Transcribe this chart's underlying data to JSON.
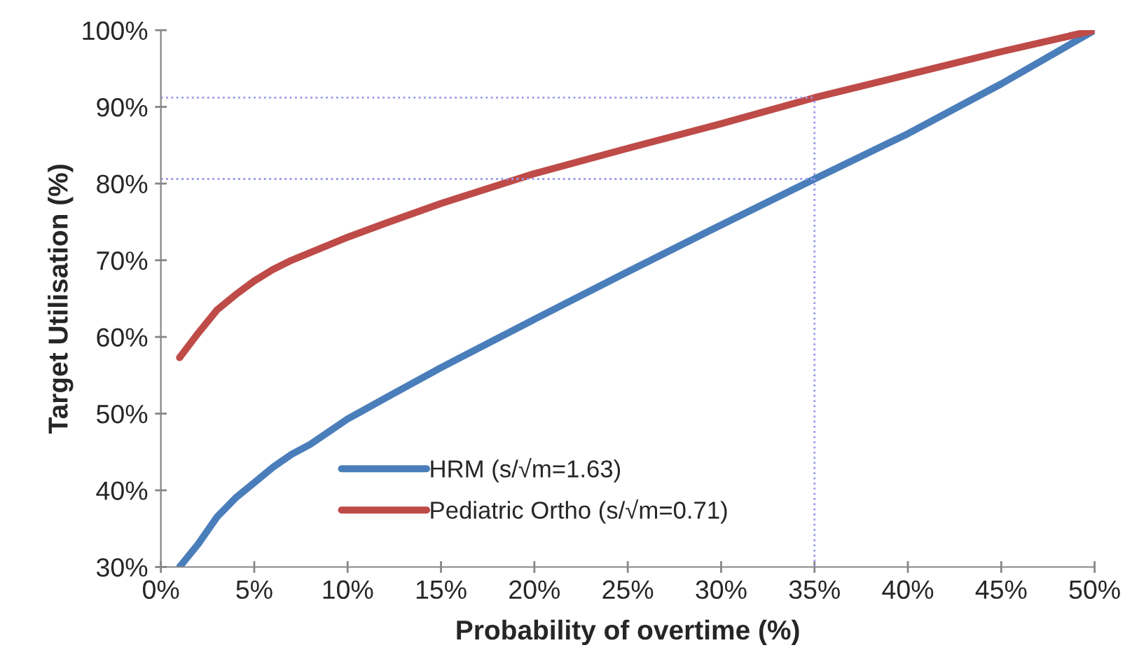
{
  "chart_data": {
    "type": "line",
    "xlabel": "Probability of overtime (%)",
    "ylabel": "Target Utilisation (%)",
    "xlim": [
      0,
      50
    ],
    "ylim": [
      30,
      100
    ],
    "xticks": [
      {
        "value": 0,
        "label": "0%"
      },
      {
        "value": 5,
        "label": "5%"
      },
      {
        "value": 10,
        "label": "10%"
      },
      {
        "value": 15,
        "label": "15%"
      },
      {
        "value": 20,
        "label": "20%"
      },
      {
        "value": 25,
        "label": "25%"
      },
      {
        "value": 30,
        "label": "30%"
      },
      {
        "value": 35,
        "label": "35%"
      },
      {
        "value": 40,
        "label": "40%"
      },
      {
        "value": 45,
        "label": "45%"
      },
      {
        "value": 50,
        "label": "50%"
      }
    ],
    "yticks": [
      {
        "value": 30,
        "label": "30%"
      },
      {
        "value": 40,
        "label": "40%"
      },
      {
        "value": 50,
        "label": "50%"
      },
      {
        "value": 60,
        "label": "60%"
      },
      {
        "value": 70,
        "label": "70%"
      },
      {
        "value": 80,
        "label": "80%"
      },
      {
        "value": 90,
        "label": "90%"
      },
      {
        "value": 100,
        "label": "100%"
      }
    ],
    "grid": false,
    "legend": "bottom left",
    "line_style": "solid",
    "marker": "none",
    "series": [
      {
        "name": "HRM (s/√m=1.63)",
        "color": "#4a7ebb",
        "x": [
          1,
          2,
          3,
          4,
          5,
          6,
          7,
          8,
          10,
          12,
          15,
          20,
          25,
          30,
          35,
          40,
          45,
          50
        ],
        "values": [
          30,
          33,
          36.5,
          39,
          41,
          43,
          44.7,
          46,
          49.3,
          52,
          56,
          62.3,
          68.5,
          74.6,
          80.6,
          86.5,
          93,
          100
        ]
      },
      {
        "name": "Pediatric Ortho (s/√m=0.71)",
        "color": "#be4b48",
        "x": [
          1,
          2,
          3,
          4,
          5,
          6,
          7,
          8,
          10,
          12,
          15,
          20,
          25,
          30,
          35,
          40,
          45,
          50
        ],
        "values": [
          57.3,
          60.5,
          63.5,
          65.5,
          67.3,
          68.8,
          70,
          71,
          73,
          74.8,
          77.4,
          81.3,
          84.6,
          87.8,
          91.2,
          94.2,
          97.2,
          100
        ]
      },
      {
        "color": "#9999ee",
        "line_style": "dotted",
        "x": [
          0,
          35
        ],
        "values": [
          91.2,
          91.2
        ]
      },
      {
        "color": "#9999ee",
        "line_style": "dotted",
        "x": [
          0,
          35
        ],
        "values": [
          80.6,
          80.6
        ]
      },
      {
        "color": "#9999ee",
        "line_style": "dotted",
        "x": [
          35,
          35
        ],
        "values": [
          30,
          91.2
        ]
      }
    ]
  }
}
